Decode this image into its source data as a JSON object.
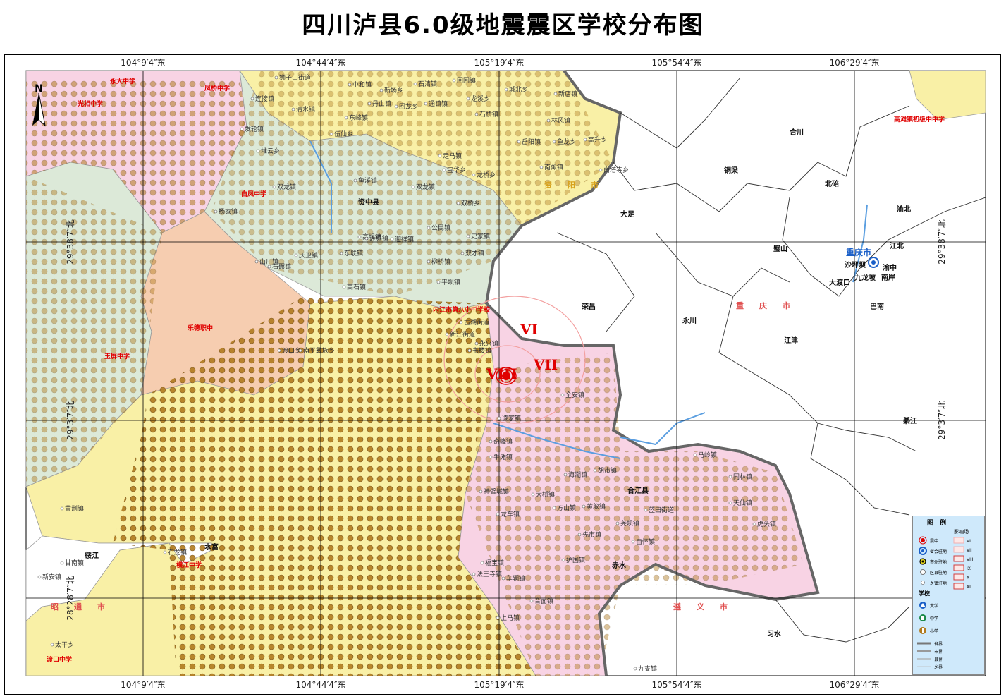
{
  "title": "四川泸县6.0级地震震区学校分布图",
  "coords": {
    "lon": [
      "104°9′4″东",
      "104°44′4″东",
      "105°19′4″东",
      "105°54′4″东",
      "106°29′4″东"
    ],
    "lat": [
      "29°38′7″北",
      "29°3′7″北",
      "28°28′7″北"
    ]
  },
  "north_label": "N",
  "intensity_labels": [
    "VI",
    "VII",
    "VIII"
  ],
  "places_major": [
    "资中县",
    "荣昌",
    "大足",
    "永川",
    "铜梁",
    "合川",
    "北碚",
    "渝北",
    "璧山",
    "江津",
    "綦江",
    "巴南",
    "赤水",
    "习水",
    "合江县",
    "水富",
    "綏江"
  ],
  "chongqing": {
    "name": "重庆市",
    "districts": [
      "江北",
      "沙坪坝",
      "渝中",
      "九龙坡",
      "南岸",
      "大渡口"
    ]
  },
  "regions": [
    "资阳市",
    "重庆市",
    "遵义市",
    "昭通市"
  ],
  "schools_highlight": [
    "永大中学",
    "光相中学",
    "凤桥中学",
    "白凤中学",
    "乐德职中",
    "玉屏中学",
    "内江市第八中中学校",
    "横江中学",
    "渡口中学",
    "高滩镇初级中中学"
  ],
  "towns": [
    "狮子山街道",
    "中和镇",
    "新场乡",
    "石清镇",
    "回回镇",
    "城北乡",
    "新店镇",
    "连接镇",
    "丹山镇",
    "回龙乡",
    "通镇镇",
    "龙溪乡",
    "石桥镇",
    "林风镇",
    "发轮镇",
    "清水镇",
    "东峰镇",
    "伍仙乡",
    "岳阳镇",
    "鱼龙乡",
    "高升乡",
    "堆云乡",
    "走马镇",
    "宝华乡",
    "龙桥乡",
    "南薰镇",
    "白塔寺乡",
    "双龙镇",
    "鱼溪镇",
    "双龙镇",
    "双桥乡",
    "杨家镇",
    "高坝镇",
    "连界镇",
    "迎祥镇",
    "公民镇",
    "史家镇",
    "双才镇",
    "柳桥镇",
    "平坝镇",
    "新江街道",
    "永兴镇",
    "古湖街道",
    "山川镇",
    "石碾镇",
    "庆卫镇",
    "东联镇",
    "高石镇",
    "全安镇",
    "凌家镇",
    "奇峰镇",
    "牛滩镇",
    "海潮镇",
    "胡市镇",
    "黄舣镇",
    "神臂城镇",
    "大桥镇",
    "方山镇",
    "蓝田街道",
    "龙车镇",
    "尧坝镇",
    "虎头镇",
    "天仙镇",
    "先市镇",
    "自怀镇",
    "福宝镇",
    "法王寺镇",
    "车辋镇",
    "护国镇",
    "合面镇",
    "上马镇",
    "九支镇",
    "同林镇",
    "马岭镇",
    "黄荆镇",
    "甘南镇",
    "石龙镇",
    "太平乡",
    "新安镇",
    "书楼镇",
    "渡口乡",
    "南平彝族乡"
  ],
  "legend": {
    "title": "图　例",
    "intensity_title": "影响场",
    "items": [
      "震中",
      "省会驻地",
      "市州驻地",
      "区县驻地",
      "乡镇驻地"
    ],
    "intensity_items": [
      "VI",
      "VII",
      "VIII",
      "IX",
      "X",
      "XI"
    ],
    "schools_title": "学校",
    "school_items": [
      "大学",
      "中学",
      "小学"
    ],
    "boundary_items": [
      "省界",
      "市界",
      "县界",
      "乡界"
    ]
  }
}
